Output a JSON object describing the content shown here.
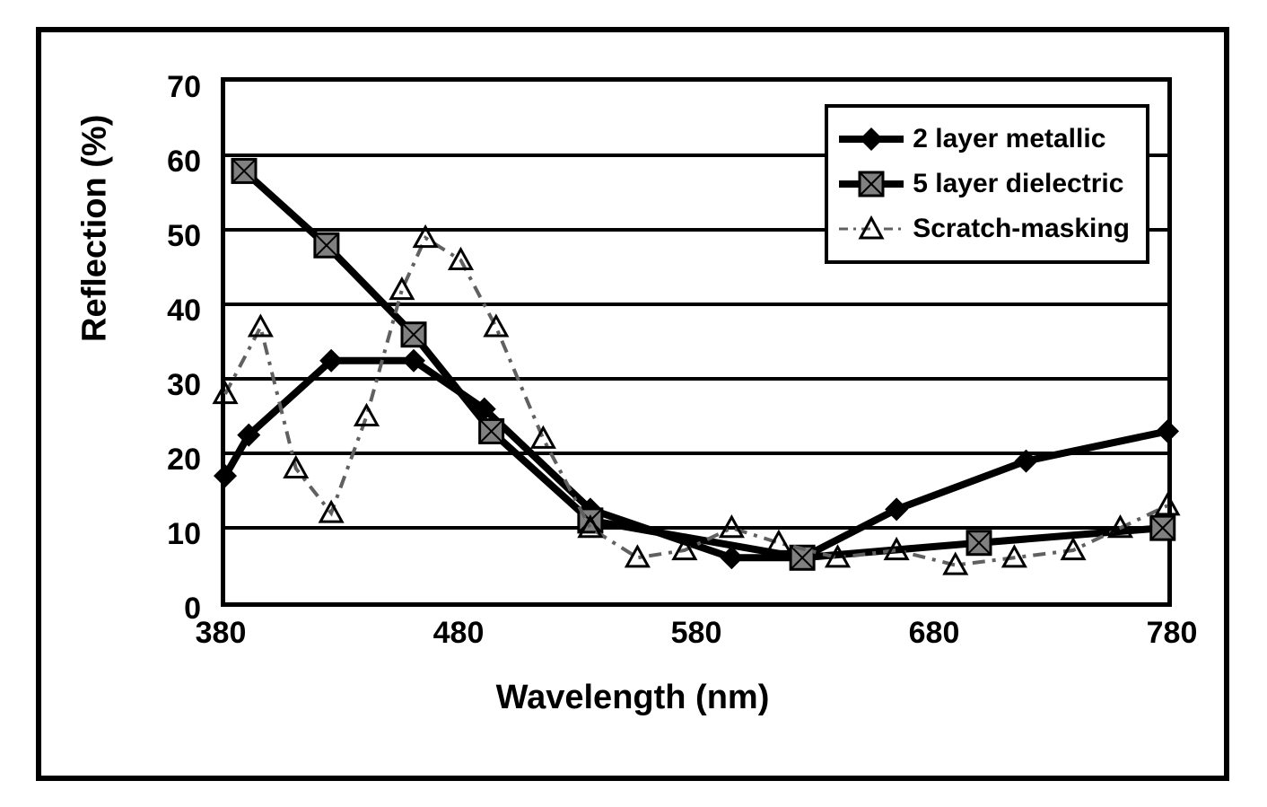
{
  "chart": {
    "type": "line",
    "xlabel": "Wavelength (nm)",
    "ylabel": "Reflection (%)",
    "xlim": [
      380,
      780
    ],
    "ylim": [
      0,
      70
    ],
    "xtick_step": 100,
    "ytick_step": 10,
    "xticks": [
      380,
      480,
      580,
      680,
      780
    ],
    "yticks": [
      0,
      10,
      20,
      30,
      40,
      50,
      60,
      70
    ],
    "background_color": "#ffffff",
    "grid_color": "#000000",
    "border_color": "#000000",
    "border_width": 5,
    "gridline_width": 4,
    "label_fontsize": 38,
    "tick_fontsize": 34,
    "legend_fontsize": 30,
    "legend_position": "upper-right-inset",
    "series": [
      {
        "name": "2 layer metallic",
        "marker": "diamond",
        "marker_size": 26,
        "marker_fill": "#000000",
        "line_width": 8,
        "line_color": "#000000",
        "dash": "solid",
        "x": [
          380,
          390,
          425,
          460,
          490,
          535,
          595,
          625,
          665,
          720,
          780
        ],
        "y": [
          17,
          22.5,
          32.5,
          32.5,
          26,
          12.5,
          6,
          6,
          12.5,
          19,
          23
        ]
      },
      {
        "name": "5 layer dielectric",
        "marker": "square-hatched",
        "marker_size": 26,
        "marker_fill": "#808080",
        "line_width": 8,
        "line_color": "#000000",
        "dash": "solid",
        "x": [
          388,
          423,
          460,
          493,
          535,
          625,
          700,
          778
        ],
        "y": [
          58,
          48,
          36,
          23,
          11,
          6,
          8,
          10
        ]
      },
      {
        "name": "Scratch-masking",
        "marker": "triangle-open",
        "marker_size": 24,
        "marker_stroke": "#000000",
        "line_width": 4,
        "line_color": "#606060",
        "dash": "dash-dot",
        "x": [
          380,
          395,
          410,
          425,
          440,
          455,
          465,
          480,
          495,
          515,
          535,
          555,
          575,
          595,
          615,
          640,
          665,
          690,
          715,
          740,
          760,
          780
        ],
        "y": [
          28,
          37,
          18,
          12,
          25,
          42,
          49,
          46,
          37,
          22,
          10,
          6,
          7,
          10,
          8,
          6,
          7,
          5,
          6,
          7,
          10,
          13
        ]
      }
    ]
  }
}
